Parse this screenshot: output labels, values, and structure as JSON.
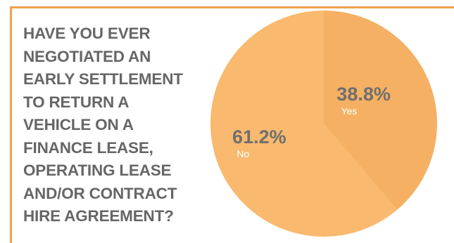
{
  "question": "HAVE YOU EVER NEGOTIATED AN EARLY SETTLEMENT TO RETURN A VEHICLE ON A FINANCE LEASE, OPERATING LEASE AND/OR CONTRACT HIRE AGREEMENT?",
  "question_lines": [
    "HAVE YOU EVER",
    "NEGOTIATED AN",
    "EARLY SETTLEMENT",
    "TO RETURN A",
    "VEHICLE ON A",
    "FINANCE LEASE,",
    "OPERATING LEASE",
    "AND/OR CONTRACT",
    "HIRE AGREEMENT?"
  ],
  "colors": {
    "frame": "#f0a04b",
    "text": "#666666",
    "slice_yes": "#f5b063",
    "slice_no": "#f9b96e"
  },
  "chart_data": {
    "type": "pie",
    "slices": [
      {
        "label": "Yes",
        "value": 38.8,
        "display": "38.8%",
        "color": "#f5b063"
      },
      {
        "label": "No",
        "value": 61.2,
        "display": "61.2%",
        "color": "#f9b96e"
      }
    ],
    "start_angle_deg": 0,
    "direction": "clockwise"
  }
}
